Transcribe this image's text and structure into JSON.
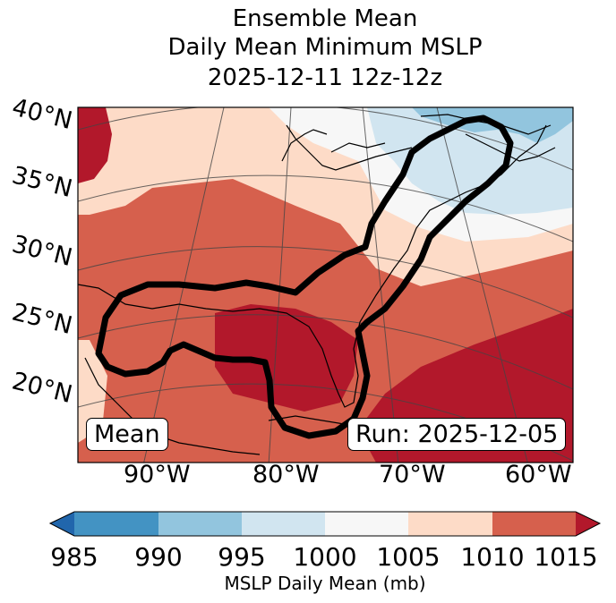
{
  "title": {
    "line1": "Ensemble Mean",
    "line2": "Daily Mean Minimum MSLP",
    "line3": "2025-12-11 12z-12z"
  },
  "map": {
    "lat_labels": [
      "40°N",
      "35°N",
      "30°N",
      "25°N",
      "20°N"
    ],
    "lon_labels": [
      "90°W",
      "80°W",
      "70°W",
      "60°W"
    ],
    "mean_box": "Mean",
    "run_box": "Run: 2025-12-05"
  },
  "colorbar": {
    "ticks": [
      "985",
      "990",
      "995",
      "1000",
      "1005",
      "1010",
      "1015"
    ],
    "label": "MSLP Daily Mean (mb)",
    "colors": [
      "#2166ac",
      "#4393c3",
      "#92c5de",
      "#d1e5f0",
      "#f7f7f7",
      "#fddbc7",
      "#d6604d",
      "#b2182b"
    ]
  }
}
